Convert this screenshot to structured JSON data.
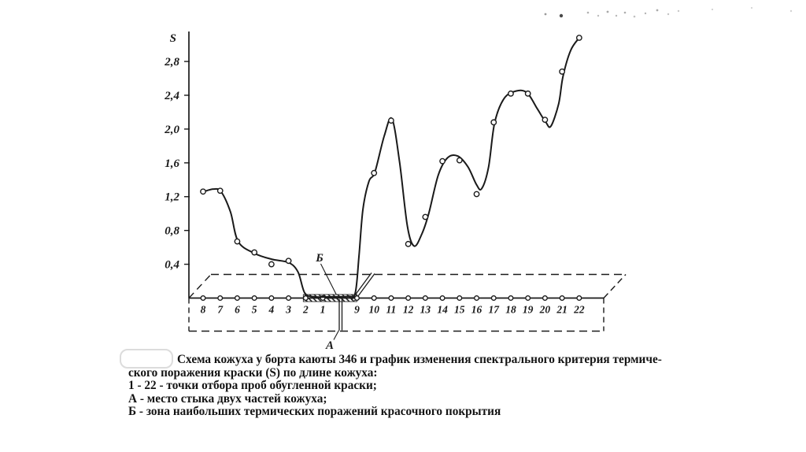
{
  "figure": {
    "y_axis_label": "S",
    "a_label": "А",
    "b_label": "Б"
  },
  "chart_data": {
    "type": "line",
    "title": "",
    "ylabel": "S",
    "ylim": [
      0,
      3.2
    ],
    "grid": false,
    "legend_position": "none",
    "y_ticks": [
      0.4,
      0.8,
      1.2,
      1.6,
      2.0,
      2.4,
      2.8
    ],
    "y_tick_labels": [
      "0,4",
      "0,8",
      "1,2",
      "1,6",
      "2,0",
      "2,4",
      "2,8"
    ],
    "categories": [
      "8",
      "7",
      "6",
      "5",
      "4",
      "3",
      "2",
      "1",
      "9",
      "10",
      "11",
      "12",
      "13",
      "14",
      "15",
      "16",
      "17",
      "18",
      "19",
      "20",
      "21",
      "22"
    ],
    "positions": [
      0,
      1,
      2,
      3,
      4,
      5,
      6,
      7,
      9,
      10,
      11,
      12,
      13,
      14,
      15,
      16,
      17,
      18,
      19,
      20,
      21,
      22
    ],
    "values": [
      1.26,
      1.27,
      0.67,
      0.54,
      0.4,
      0.44,
      0.02,
      0.02,
      0.03,
      1.48,
      2.1,
      0.64,
      0.96,
      1.62,
      1.63,
      1.23,
      2.08,
      2.42,
      2.42,
      2.11,
      2.68,
      3.08
    ],
    "curve_knots": [
      [
        0.05,
        1.26
      ],
      [
        0.6,
        1.29
      ],
      [
        1.05,
        1.26
      ],
      [
        1.6,
        1.02
      ],
      [
        2.05,
        0.67
      ],
      [
        3.0,
        0.53
      ],
      [
        4.0,
        0.46
      ],
      [
        5.0,
        0.42
      ],
      [
        5.55,
        0.31
      ],
      [
        5.95,
        0.06
      ],
      [
        6.5,
        0.015
      ],
      [
        7.5,
        0.015
      ],
      [
        8.5,
        0.02
      ],
      [
        8.9,
        0.06
      ],
      [
        9.12,
        0.5
      ],
      [
        9.35,
        1.05
      ],
      [
        9.7,
        1.38
      ],
      [
        10.05,
        1.49
      ],
      [
        10.6,
        1.92
      ],
      [
        11.05,
        2.12
      ],
      [
        11.5,
        1.6
      ],
      [
        11.95,
        0.85
      ],
      [
        12.35,
        0.615
      ],
      [
        12.8,
        0.76
      ],
      [
        13.2,
        1.0
      ],
      [
        13.75,
        1.45
      ],
      [
        14.3,
        1.66
      ],
      [
        14.9,
        1.68
      ],
      [
        15.5,
        1.55
      ],
      [
        16.0,
        1.34
      ],
      [
        16.3,
        1.295
      ],
      [
        16.7,
        1.55
      ],
      [
        17.05,
        2.07
      ],
      [
        17.6,
        2.36
      ],
      [
        18.3,
        2.45
      ],
      [
        18.95,
        2.43
      ],
      [
        19.55,
        2.24
      ],
      [
        20.05,
        2.08
      ],
      [
        20.35,
        2.035
      ],
      [
        20.8,
        2.3
      ],
      [
        21.05,
        2.62
      ],
      [
        21.5,
        2.93
      ],
      [
        22.0,
        3.08
      ]
    ],
    "hatched_zone": {
      "label": "Б",
      "from_point": "2",
      "to_point": "9"
    },
    "joint_marker": {
      "label": "А",
      "between_points": [
        "1",
        "9"
      ]
    }
  },
  "caption": {
    "lines": [
      "Схема кожуха у борта каюты 346 и график изменения спектрального критерия термиче-",
      "ского поражения краски (S) по длине кожуха:",
      "1 - 22 - точки отбора проб обугленной краски;",
      "А - место стыка двух частей кожуха;",
      "Б - зона наибольших термических поражений красочного покрытия"
    ]
  },
  "colors": {
    "ink": "#1a1a1a",
    "background": "#ffffff"
  }
}
